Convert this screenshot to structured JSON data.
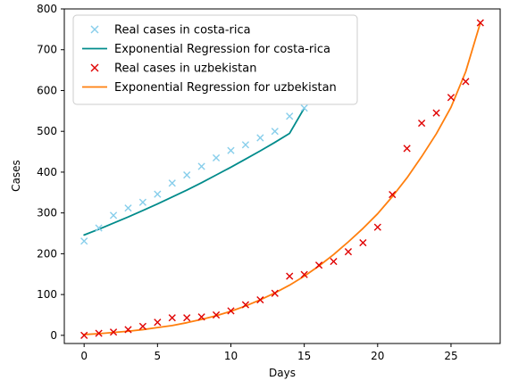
{
  "chart_data": {
    "type": "scatter",
    "title": "",
    "xlabel": "Days",
    "ylabel": "Cases",
    "xlim": [
      -1.35,
      28.35
    ],
    "ylim": [
      -20,
      800
    ],
    "xticks": [
      0,
      5,
      10,
      15,
      20,
      25
    ],
    "yticks": [
      0,
      100,
      200,
      300,
      400,
      500,
      600,
      700,
      800
    ],
    "grid": false,
    "legend_position": "top-left",
    "series": [
      {
        "name": "Real cases in costa-rica",
        "kind": "scatter",
        "marker": "x",
        "color": "#87ceeb",
        "x": [
          0,
          1,
          2,
          3,
          4,
          5,
          6,
          7,
          8,
          9,
          10,
          11,
          12,
          13,
          14,
          15
        ],
        "y": [
          231,
          263,
          294,
          312,
          326,
          346,
          373,
          393,
          414,
          435,
          453,
          467,
          484,
          500,
          537,
          557
        ]
      },
      {
        "name": "Exponential Regression for costa-rica",
        "kind": "line",
        "color": "#008b8b",
        "x": [
          0,
          1,
          2,
          3,
          4,
          5,
          6,
          7,
          8,
          9,
          10,
          11,
          12,
          13,
          14,
          15
        ],
        "y": [
          246,
          260,
          275,
          290,
          306,
          322,
          339,
          356,
          374,
          393,
          412,
          432,
          452,
          473,
          495,
          557
        ]
      },
      {
        "name": "Real cases in uzbekistan",
        "kind": "scatter",
        "marker": "x",
        "color": "#e00000",
        "x": [
          0,
          1,
          2,
          3,
          4,
          5,
          6,
          7,
          8,
          9,
          10,
          11,
          12,
          13,
          14,
          15,
          16,
          17,
          18,
          19,
          20,
          21,
          22,
          23,
          24,
          25,
          26,
          27
        ],
        "y": [
          0,
          5,
          8,
          14,
          22,
          32,
          43,
          43,
          45,
          50,
          60,
          75,
          87,
          103,
          145,
          149,
          172,
          181,
          205,
          227,
          265,
          345,
          458,
          520,
          545,
          583,
          622,
          766
        ]
      },
      {
        "name": "Exponential Regression for uzbekistan",
        "kind": "line",
        "color": "#ff7f0e",
        "x": [
          0,
          1,
          2,
          3,
          4,
          5,
          6,
          7,
          8,
          9,
          10,
          11,
          12,
          13,
          14,
          15,
          16,
          17,
          18,
          19,
          20,
          21,
          22,
          23,
          24,
          25,
          26,
          27
        ],
        "y": [
          2,
          4,
          7,
          10,
          14,
          19,
          24,
          31,
          39,
          48,
          59,
          72,
          87,
          104,
          123,
          145,
          170,
          198,
          229,
          262,
          298,
          340,
          386,
          438,
          494,
          559,
          646,
          766
        ]
      }
    ]
  }
}
